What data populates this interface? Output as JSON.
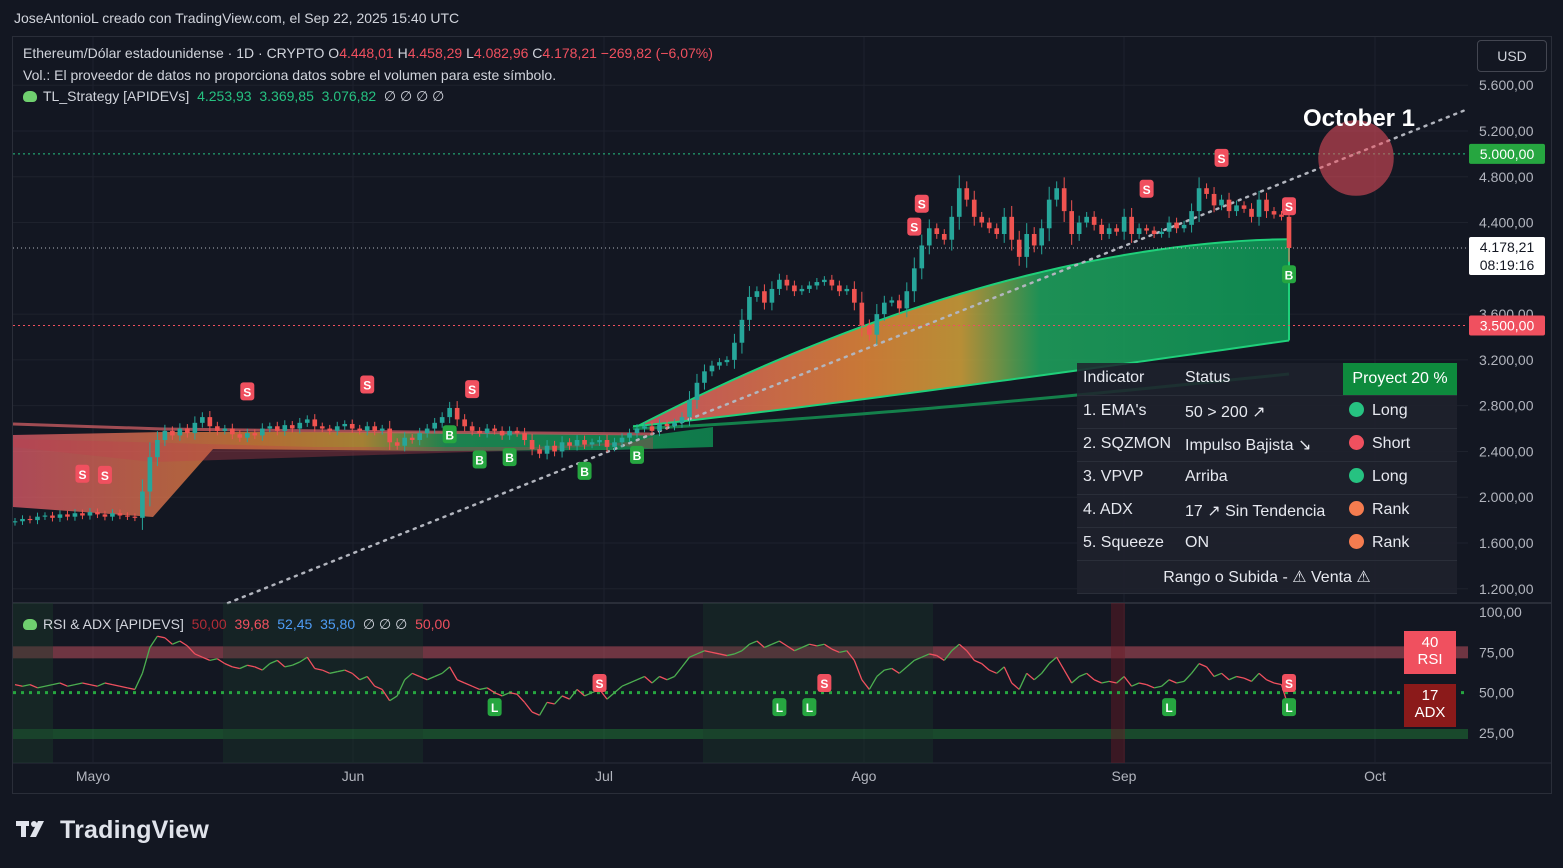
{
  "header": {
    "credit": "JoseAntonioL creado con TradingView.com, el Sep 22, 2025 15:40 UTC"
  },
  "legend": {
    "symbol": "Ethereum/Dólar estadounidense · 1D · CRYPTO",
    "o_label": "O",
    "o": "4.448,01",
    "h_label": "H",
    "h": "4.458,29",
    "l_label": "L",
    "l": "4.082,96",
    "c_label": "C",
    "c": "4.178,21",
    "change": "−269,82 (−6,07%)",
    "vol_note": "Vol.: El proveedor de datos no proporciona datos sobre el volumen para este símbolo.",
    "strategy_name": "TL_Strategy [APIDEVs]",
    "strategy_values": [
      "4.253,93",
      "3.369,85",
      "3.076,82"
    ],
    "strategy_empty": "∅ ∅ ∅ ∅",
    "rsi_name": "RSI & ADX [APIDEVS]",
    "rsi_values": [
      "50,00",
      "39,68",
      "52,45",
      "35,80"
    ],
    "rsi_empty": "∅ ∅ ∅",
    "rsi_last": "50,00"
  },
  "currency": "USD",
  "annotation": "October 1",
  "price_tags": {
    "level_high": "5.000,00",
    "last_price": "4.178,21",
    "countdown": "08:19:16",
    "level_low": "3.500,00"
  },
  "oscillator_tags": {
    "rsi_value": "40",
    "rsi_label": "RSI",
    "adx_value": "17",
    "adx_label": "ADX"
  },
  "indicator_table": {
    "headers": [
      "Indicator",
      "Status",
      "Proyect 20 %"
    ],
    "rows": [
      {
        "indicator": "1. EMA's",
        "status": "50 > 200 ↗",
        "signal": "Long",
        "color": "#26c281"
      },
      {
        "indicator": "2. SQZMON",
        "status": "Impulso Bajista ↘",
        "signal": "Short",
        "color": "#f0505f"
      },
      {
        "indicator": "3. VPVP",
        "status": "Arriba",
        "signal": "Long",
        "color": "#26c281"
      },
      {
        "indicator": "4. ADX",
        "status": "17 ↗ Sin Tendencia",
        "signal": "Rank",
        "color": "#f57c4f"
      },
      {
        "indicator": "5. Squeeze",
        "status": "ON",
        "signal": "Rank",
        "color": "#f57c4f"
      }
    ],
    "footer": "Rango o Subida - ⚠ Venta ⚠"
  },
  "branding": {
    "logo_text": "TradingView"
  },
  "colors": {
    "up": "#26a69a",
    "down": "#ef5350",
    "bg": "#131722",
    "accent_green": "#0e8a3d"
  },
  "chart_data": {
    "type": "candlestick",
    "symbol": "ETH/USD",
    "y_ticks": [
      "5.600,00",
      "5.200,00",
      "4.800,00",
      "4.400,00",
      "3.600,00",
      "3.200,00",
      "2.800,00",
      "2.400,00",
      "2.000,00",
      "1.600,00",
      "1.200,00"
    ],
    "y_tick_values": [
      5600,
      5200,
      4800,
      4400,
      3600,
      3200,
      2800,
      2400,
      2000,
      1600,
      1200
    ],
    "x_ticks": [
      "Mayo",
      "Jun",
      "Jul",
      "Ago",
      "Sep",
      "Oct"
    ],
    "ylim": [
      1100,
      5800
    ],
    "osc_ticks": [
      "100,00",
      "75,00",
      "50,00",
      "25,00"
    ],
    "osc_tick_values": [
      100,
      75,
      50,
      25
    ],
    "horizontal_levels": [
      5000,
      3500
    ],
    "closes": [
      1790,
      1810,
      1800,
      1830,
      1840,
      1820,
      1850,
      1830,
      1860,
      1840,
      1870,
      1850,
      1830,
      1860,
      1840,
      1830,
      1820,
      2050,
      2350,
      2500,
      2580,
      2540,
      2600,
      2560,
      2650,
      2700,
      2620,
      2580,
      2600,
      2550,
      2520,
      2560,
      2540,
      2600,
      2620,
      2580,
      2630,
      2600,
      2650,
      2680,
      2620,
      2600,
      2580,
      2620,
      2640,
      2600,
      2580,
      2620,
      2580,
      2600,
      2480,
      2450,
      2520,
      2500,
      2560,
      2600,
      2650,
      2700,
      2780,
      2680,
      2620,
      2580,
      2560,
      2600,
      2580,
      2540,
      2580,
      2560,
      2500,
      2420,
      2380,
      2450,
      2400,
      2480,
      2450,
      2500,
      2460,
      2480,
      2500,
      2440,
      2480,
      2520,
      2560,
      2600,
      2620,
      2580,
      2640,
      2620,
      2650,
      2700,
      2850,
      3000,
      3100,
      3150,
      3180,
      3200,
      3350,
      3550,
      3750,
      3800,
      3700,
      3820,
      3900,
      3850,
      3800,
      3820,
      3850,
      3880,
      3900,
      3850,
      3800,
      3820,
      3700,
      3500,
      3420,
      3600,
      3700,
      3720,
      3650,
      3800,
      4000,
      4200,
      4350,
      4300,
      4250,
      4450,
      4700,
      4600,
      4450,
      4400,
      4350,
      4300,
      4450,
      4250,
      4100,
      4300,
      4200,
      4350,
      4600,
      4700,
      4500,
      4300,
      4400,
      4450,
      4380,
      4300,
      4350,
      4320,
      4450,
      4300,
      4350,
      4330,
      4300,
      4320,
      4400,
      4350,
      4380,
      4500,
      4700,
      4650,
      4550,
      4600,
      4500,
      4550,
      4520,
      4450,
      4600,
      4500,
      4470,
      4450,
      4178
    ],
    "strategy_lines": {
      "upper": 4253.93,
      "middle": 3369.85,
      "lower": 3076.82
    },
    "rsi": [
      55,
      54,
      55,
      53,
      54,
      55,
      56,
      54,
      55,
      56,
      55,
      54,
      56,
      55,
      54,
      53,
      52,
      62,
      78,
      85,
      84,
      80,
      82,
      79,
      74,
      72,
      70,
      71,
      68,
      66,
      65,
      67,
      66,
      64,
      68,
      70,
      66,
      67,
      69,
      72,
      65,
      64,
      62,
      63,
      64,
      62,
      58,
      60,
      54,
      52,
      45,
      48,
      58,
      62,
      60,
      58,
      60,
      62,
      66,
      58,
      56,
      54,
      52,
      53,
      50,
      48,
      50,
      49,
      44,
      38,
      36,
      44,
      43,
      48,
      46,
      52,
      48,
      50,
      52,
      46,
      50,
      54,
      56,
      58,
      60,
      56,
      60,
      58,
      60,
      66,
      72,
      74,
      76,
      75,
      74,
      73,
      74,
      76,
      80,
      82,
      78,
      80,
      82,
      79,
      76,
      78,
      80,
      79,
      80,
      77,
      75,
      76,
      70,
      58,
      52,
      60,
      64,
      65,
      62,
      66,
      70,
      72,
      74,
      73,
      70,
      76,
      80,
      76,
      70,
      68,
      64,
      62,
      66,
      56,
      52,
      62,
      58,
      62,
      68,
      72,
      64,
      56,
      60,
      62,
      58,
      56,
      57,
      56,
      60,
      54,
      56,
      55,
      53,
      54,
      58,
      56,
      57,
      62,
      68,
      66,
      60,
      62,
      58,
      60,
      59,
      57,
      62,
      58,
      56,
      55,
      40
    ]
  }
}
